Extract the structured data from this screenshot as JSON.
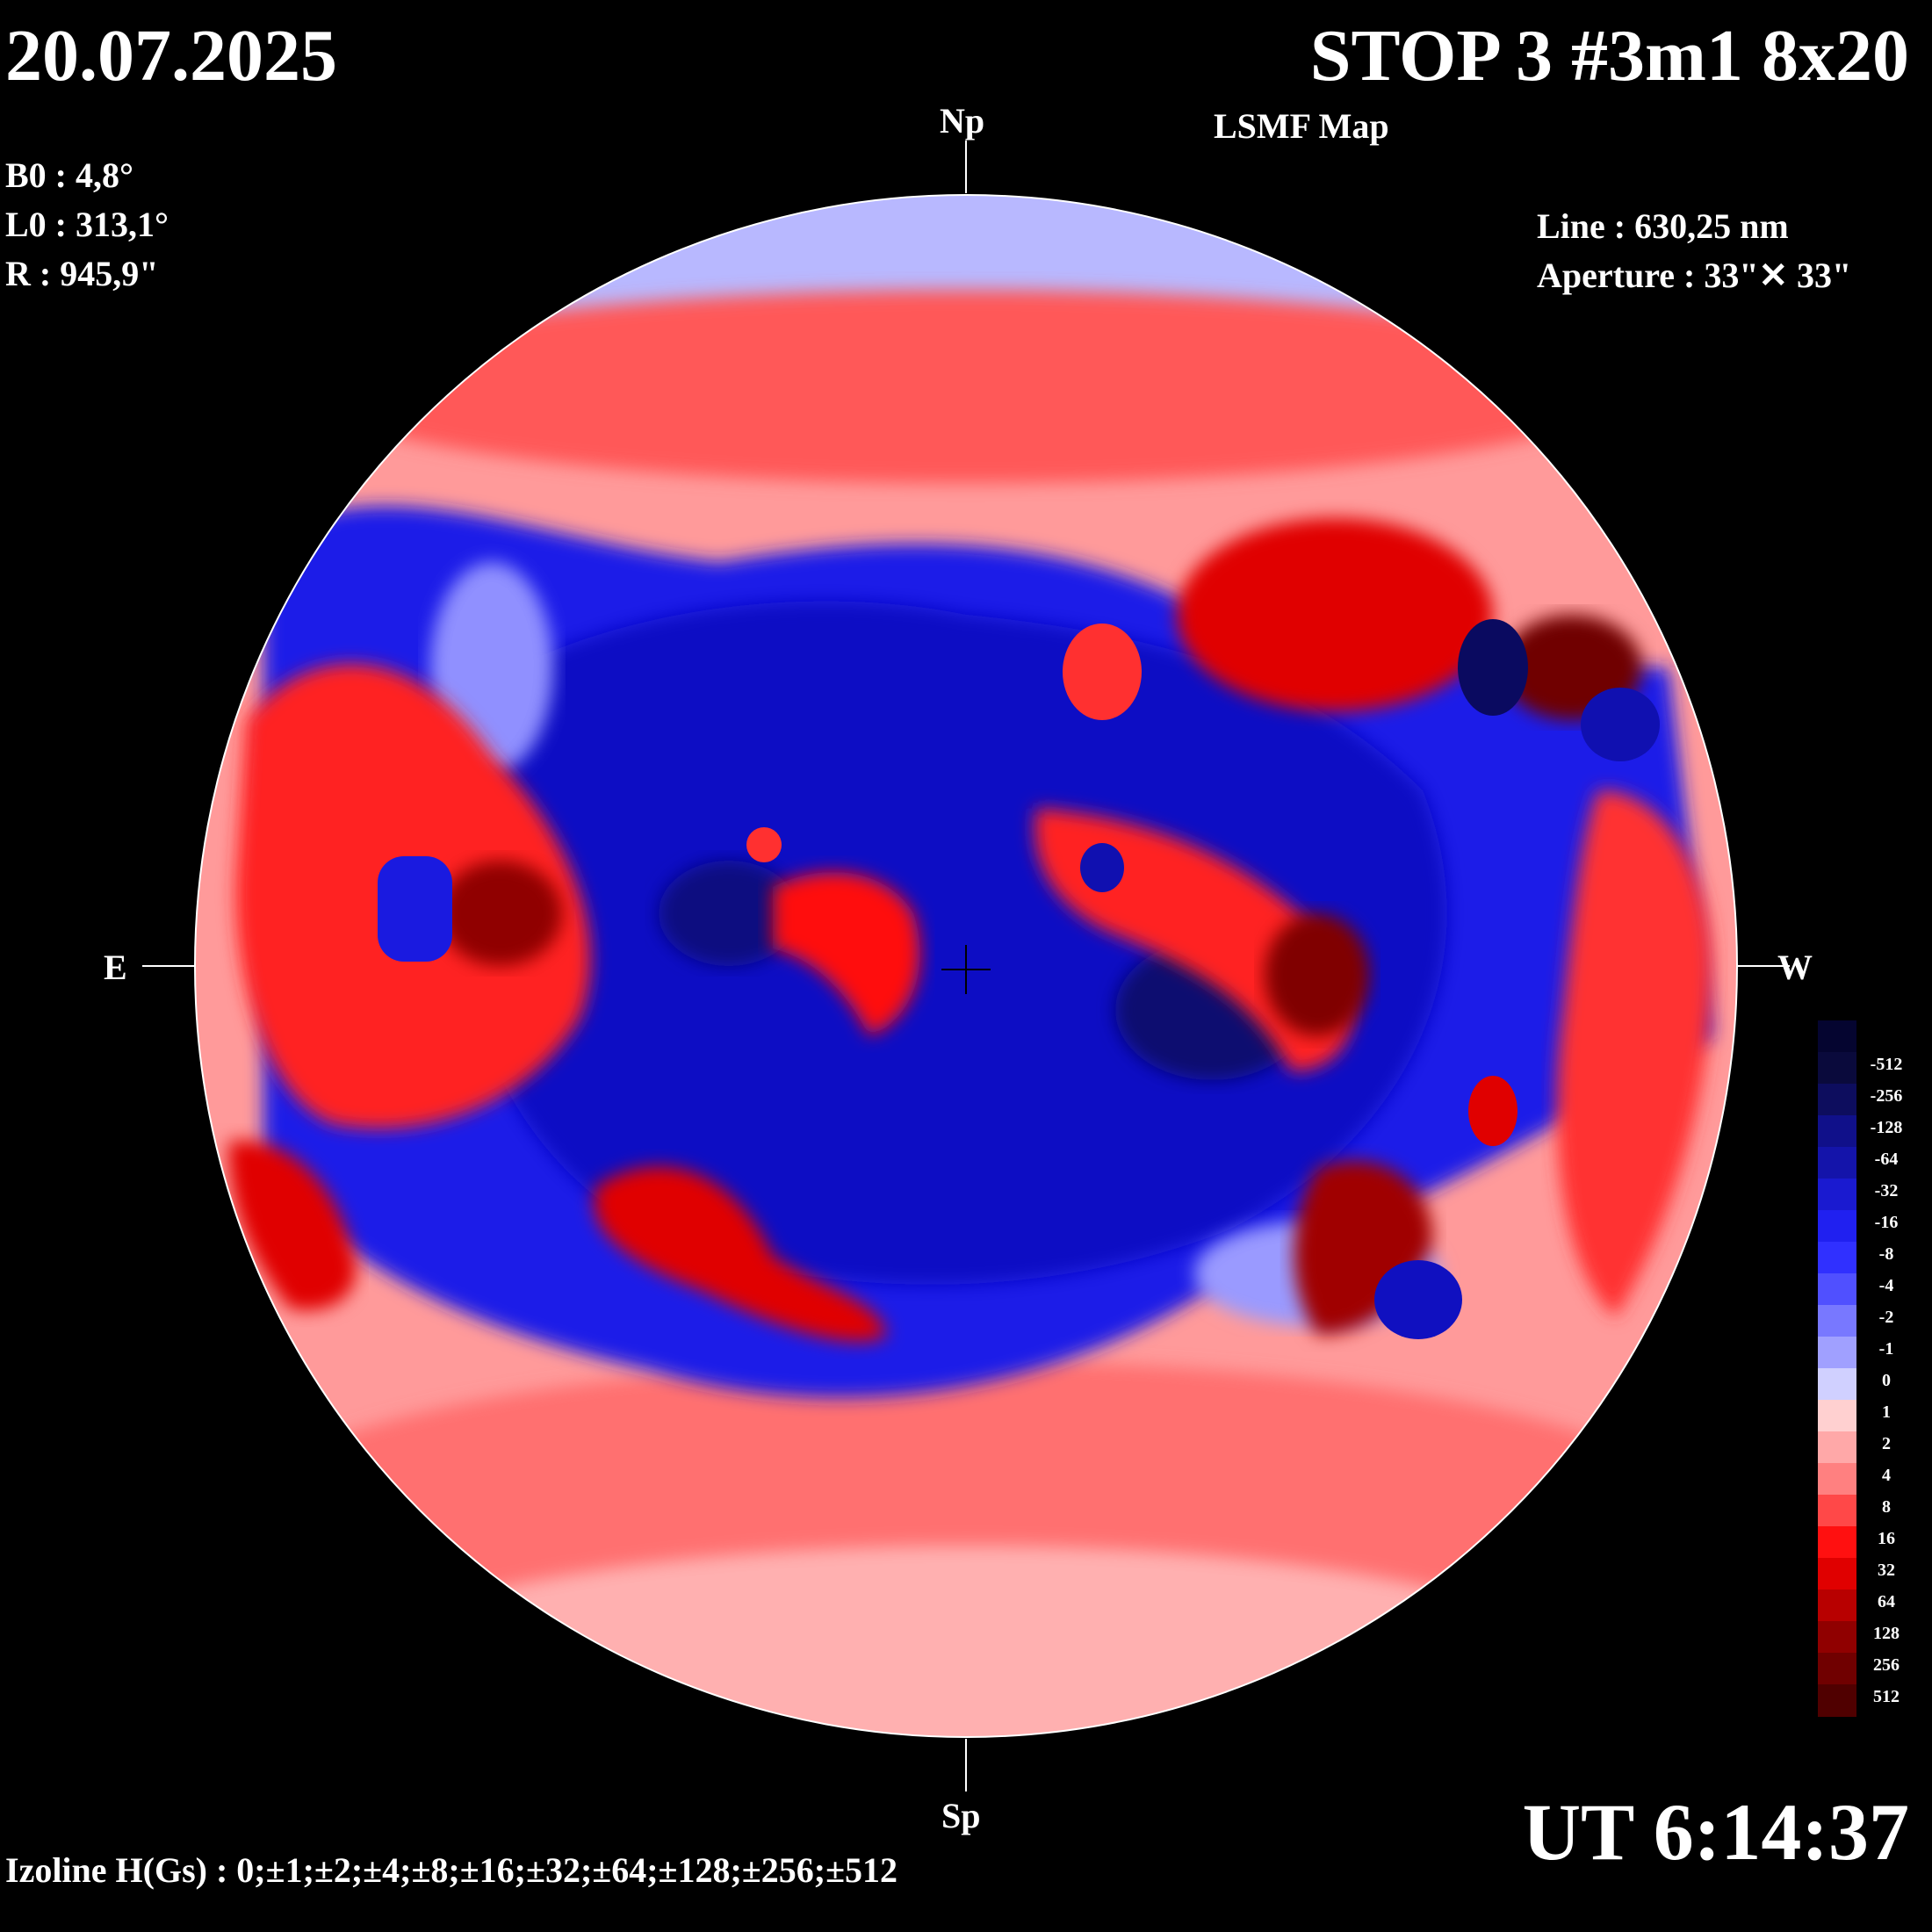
{
  "header": {
    "date": "20.07.2025",
    "title": "STOP 3 #3m1 8x20",
    "subtitle": "LSMF  Map"
  },
  "params": {
    "b0": "B0 : 4,8°",
    "l0": "L0 : 313,1°",
    "r": "R  : 945,9\""
  },
  "instrument": {
    "line": "Line :  630,25 nm",
    "aperture": "Aperture : 33\"✕ 33\""
  },
  "directions": {
    "north": "Np",
    "south": "Sp",
    "east": "E",
    "west": "W"
  },
  "time": "UT 6:14:37",
  "izoline": "Izoline H(Gs) : 0;±1;±2;±4;±8;±16;±32;±64;±128;±256;±512",
  "colorscale": {
    "labels": [
      "-512",
      "-256",
      "-128",
      "-64",
      "-32",
      "-16",
      "-8",
      "-4",
      "-2",
      "-1",
      "0",
      "1",
      "2",
      "4",
      "8",
      "16",
      "32",
      "64",
      "128",
      "256",
      "512"
    ],
    "colors": [
      "#0a0a3c",
      "#0d0d5e",
      "#10108a",
      "#1414aa",
      "#1a1ad0",
      "#2020f0",
      "#3030ff",
      "#5050ff",
      "#7878ff",
      "#a0a0ff",
      "#d0d0ff",
      "#ffd0d0",
      "#ffa8a8",
      "#ff8080",
      "#ff4848",
      "#ff1010",
      "#e00000",
      "#b80000",
      "#900000",
      "#700000",
      "#500000"
    ]
  },
  "colors": {
    "positive": "#ff2a2a",
    "negative": "#2020e8",
    "neutral_pos": "#ffc8c8",
    "neutral_neg": "#c8c8ff"
  }
}
